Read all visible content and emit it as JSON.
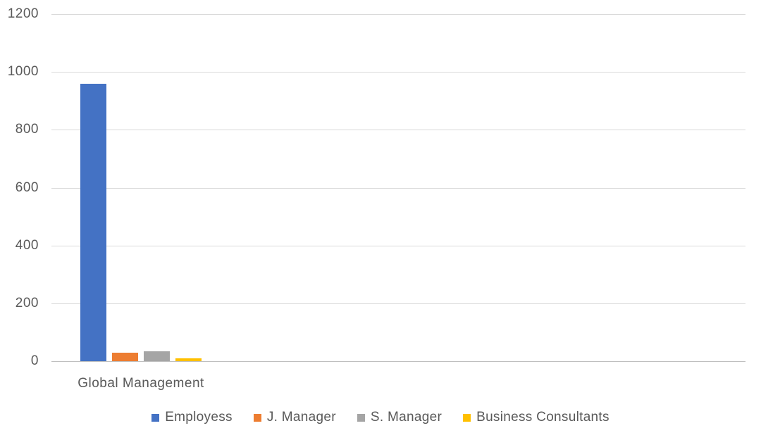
{
  "chart_data": {
    "type": "bar",
    "title": "",
    "categories": [
      "Global Management"
    ],
    "series": [
      {
        "name": "Employess",
        "color": "#4472C4",
        "values": [
          960
        ]
      },
      {
        "name": "J. Manager",
        "color": "#ED7D31",
        "values": [
          28
        ]
      },
      {
        "name": "S. Manager",
        "color": "#A5A5A5",
        "values": [
          33
        ]
      },
      {
        "name": "Business Consultants",
        "color": "#FFC000",
        "values": [
          10
        ]
      }
    ],
    "xlabel": "",
    "ylabel": "",
    "ylim": [
      0,
      1200
    ],
    "yticks": [
      0,
      200,
      400,
      600,
      800,
      1000,
      1200
    ],
    "grid": true,
    "legend_position": "bottom",
    "gridline_color": "#D9D9D9",
    "axis_line_color": "#BFBFBF",
    "label_color": "#595959",
    "background_color": "#FFFFFF"
  }
}
